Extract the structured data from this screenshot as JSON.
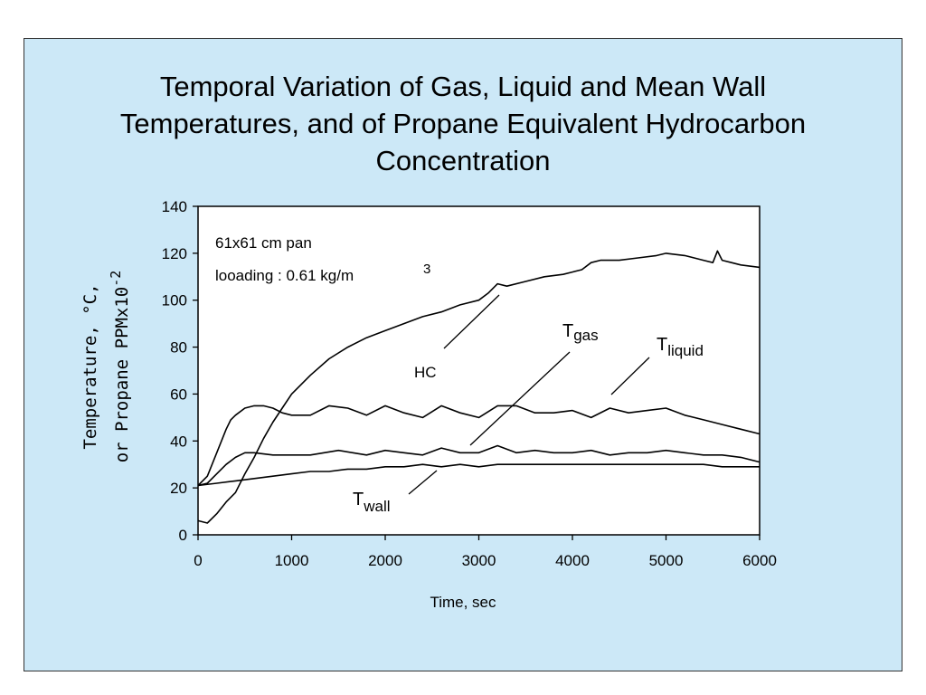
{
  "title_lines": [
    "Temporal Variation of Gas, Liquid and Mean Wall",
    "Temperatures, and of Propane Equivalent Hydrocarbon",
    "Concentration"
  ],
  "chart_data": {
    "type": "line",
    "xlabel": "Time, sec",
    "ylabel_line1": "Temperature, °C,",
    "ylabel_line2_prefix": "or Propane PPMx10",
    "ylabel_line2_exp": "-2",
    "xlim": [
      0,
      6000
    ],
    "ylim": [
      0,
      140
    ],
    "x_ticks": [
      "0",
      "1000",
      "2000",
      "3000",
      "4000",
      "5000",
      "6000"
    ],
    "y_ticks": [
      "0",
      "20",
      "40",
      "60",
      "80",
      "100",
      "120",
      "140"
    ],
    "grid": false,
    "annotations": {
      "pan_size": "61x61 cm pan",
      "loading": "looading : 0.61 kg/m",
      "loading_exp": "3"
    },
    "series_labels": {
      "hc": "HC",
      "gas_base": "T",
      "gas_sub": "gas",
      "liquid_base": "T",
      "liquid_sub": "liquid",
      "wall_base": "T",
      "wall_sub": "wall"
    },
    "series": [
      {
        "id": "hc",
        "x": [
          0,
          100,
          200,
          300,
          400,
          500,
          600,
          700,
          800,
          900,
          1000,
          1200,
          1400,
          1600,
          1800,
          2000,
          2200,
          2400,
          2600,
          2800,
          3000,
          3100,
          3200,
          3300,
          3500,
          3700,
          3900,
          4000,
          4100,
          4200,
          4300,
          4500,
          4700,
          4900,
          5000,
          5200,
          5400,
          5500,
          5550,
          5600,
          5700,
          5800,
          6000
        ],
        "values": [
          6,
          5,
          9,
          14,
          18,
          26,
          33,
          41,
          48,
          54,
          60,
          68,
          75,
          80,
          84,
          87,
          90,
          93,
          95,
          98,
          100,
          103,
          107,
          106,
          108,
          110,
          111,
          112,
          113,
          116,
          117,
          117,
          118,
          119,
          120,
          119,
          117,
          116,
          121,
          117,
          116,
          115,
          114
        ]
      },
      {
        "id": "gas",
        "x": [
          0,
          100,
          200,
          300,
          350,
          400,
          500,
          600,
          700,
          800,
          900,
          1000,
          1200,
          1400,
          1600,
          1800,
          2000,
          2200,
          2400,
          2600,
          2800,
          3000,
          3200,
          3400,
          3600,
          3800,
          4000,
          4200,
          4400,
          4600,
          4800,
          5000,
          5200,
          5400,
          5600,
          5800,
          6000
        ],
        "values": [
          21,
          25,
          35,
          45,
          49,
          51,
          54,
          55,
          55,
          54,
          52,
          51,
          51,
          55,
          54,
          51,
          55,
          52,
          50,
          55,
          52,
          50,
          55,
          55,
          52,
          52,
          53,
          50,
          54,
          52,
          53,
          54,
          51,
          49,
          47,
          45,
          43
        ]
      },
      {
        "id": "liquid",
        "x": [
          0,
          100,
          200,
          300,
          400,
          500,
          600,
          800,
          1000,
          1200,
          1500,
          1800,
          2000,
          2200,
          2400,
          2600,
          2800,
          3000,
          3200,
          3400,
          3600,
          3800,
          4000,
          4200,
          4400,
          4600,
          4800,
          5000,
          5200,
          5400,
          5600,
          5800,
          6000
        ],
        "values": [
          21,
          22,
          26,
          30,
          33,
          35,
          35,
          34,
          34,
          34,
          36,
          34,
          36,
          35,
          34,
          37,
          35,
          35,
          38,
          35,
          36,
          35,
          35,
          36,
          34,
          35,
          35,
          36,
          35,
          34,
          34,
          33,
          31
        ]
      },
      {
        "id": "wall",
        "x": [
          0,
          200,
          400,
          600,
          800,
          1000,
          1200,
          1400,
          1600,
          1800,
          2000,
          2200,
          2400,
          2600,
          2800,
          3000,
          3200,
          3400,
          3600,
          3800,
          4000,
          4200,
          4400,
          4600,
          4800,
          5000,
          5200,
          5400,
          5600,
          5800,
          6000
        ],
        "values": [
          21,
          22,
          23,
          24,
          25,
          26,
          27,
          27,
          28,
          28,
          29,
          29,
          30,
          29,
          30,
          29,
          30,
          30,
          30,
          30,
          30,
          30,
          30,
          30,
          30,
          30,
          30,
          30,
          29,
          29,
          29
        ]
      }
    ]
  }
}
